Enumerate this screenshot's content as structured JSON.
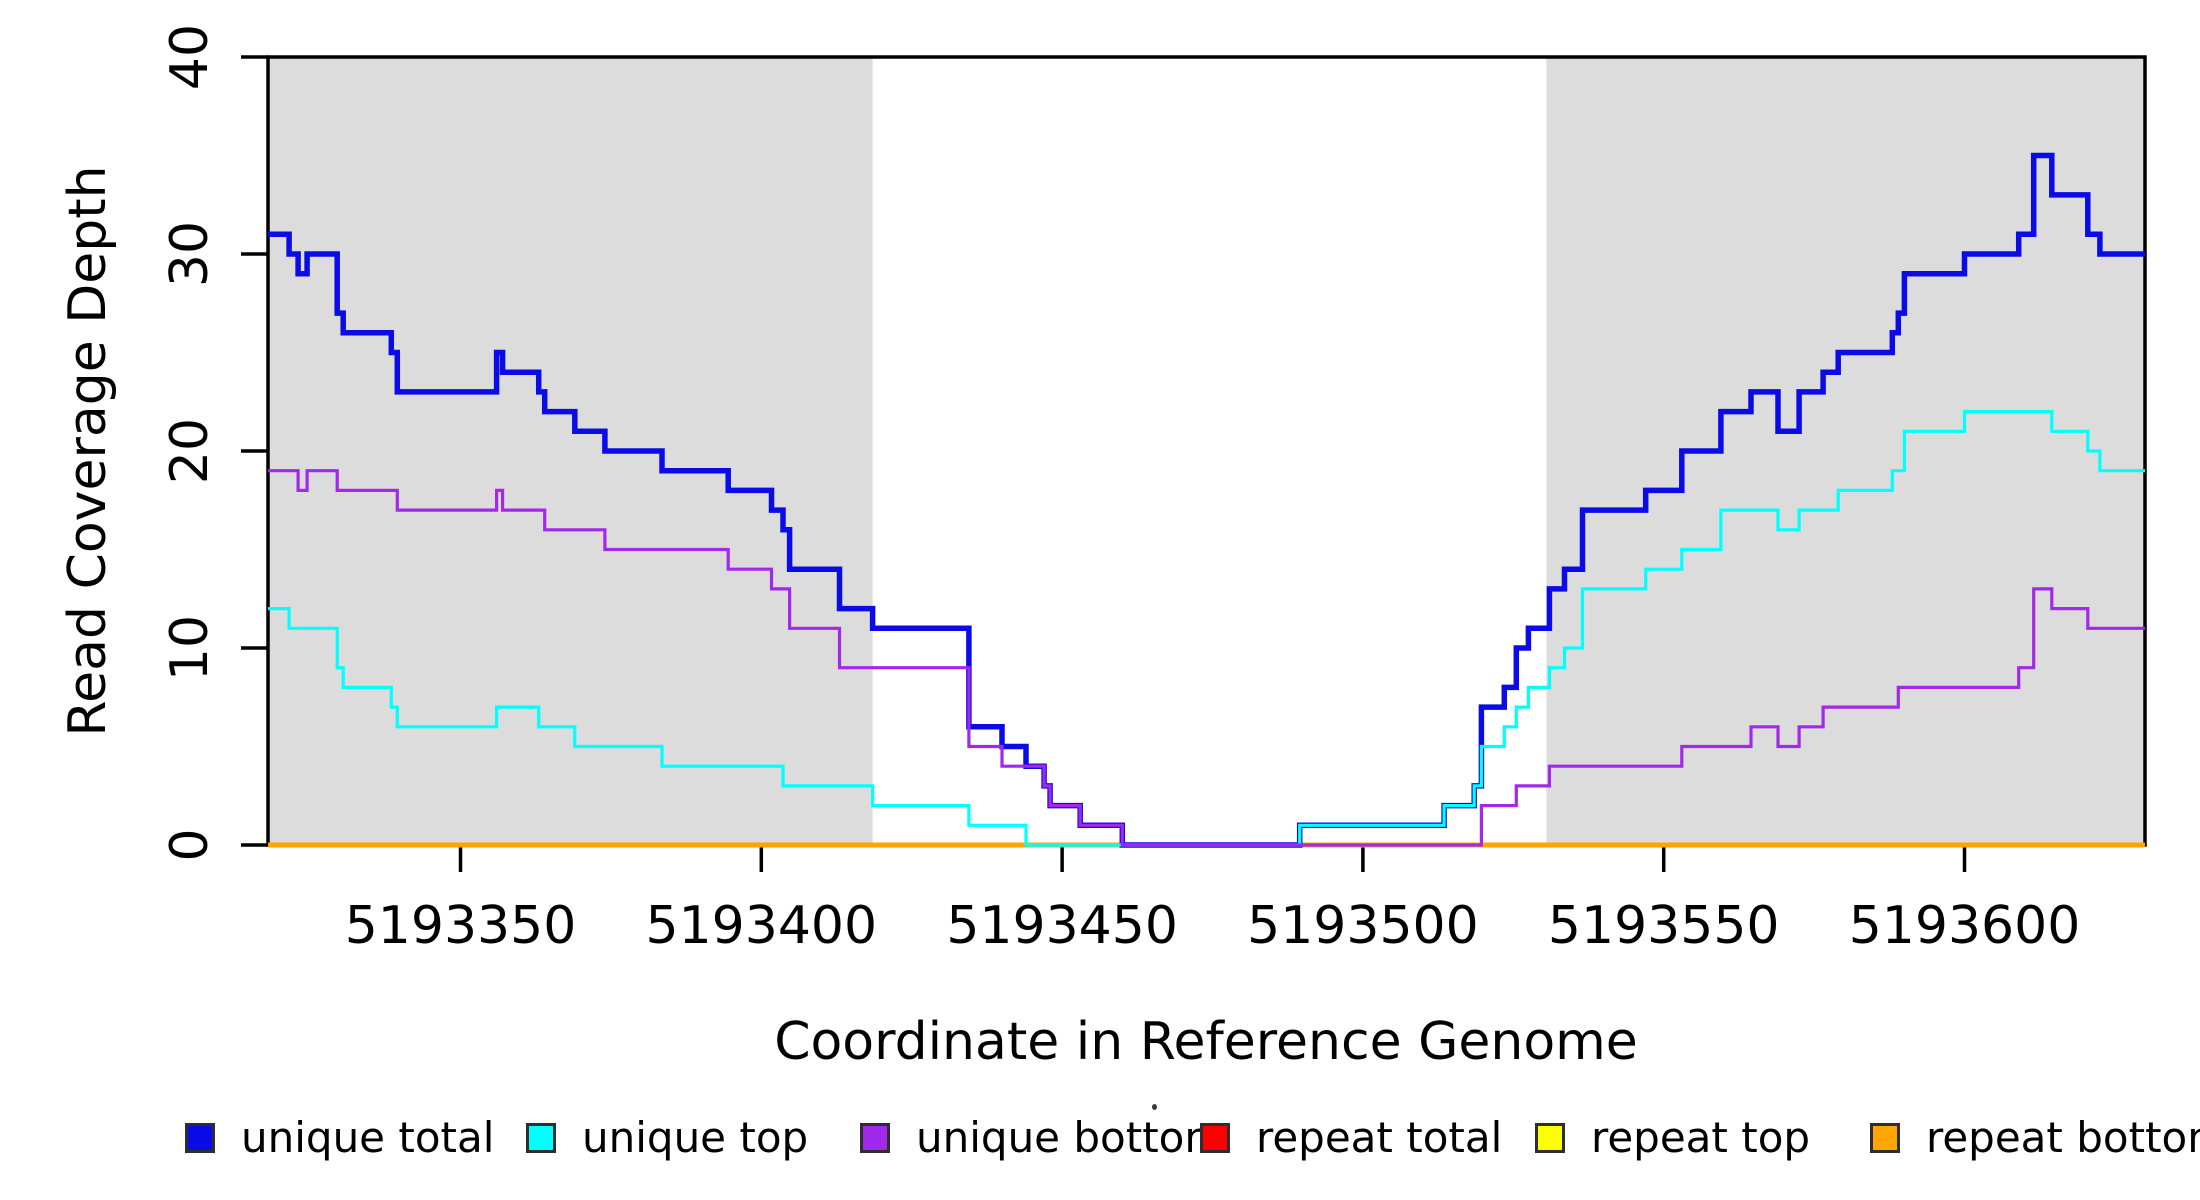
{
  "figure": {
    "background": "#FFFFFF",
    "axis_color": "#000000",
    "shaded_band_color": "#DCDCDC"
  },
  "chart_data": {
    "type": "line",
    "subtype": "step-coverage-plot",
    "title": "",
    "xlabel": "Coordinate in Reference Genome",
    "ylabel": "Read Coverage Depth",
    "xlim": [
      5193318,
      5193630
    ],
    "ylim": [
      0,
      40
    ],
    "xticks": [
      5193350,
      5193400,
      5193450,
      5193500,
      5193550,
      5193600
    ],
    "yticks": [
      0,
      10,
      20,
      30,
      40
    ],
    "grid": false,
    "legend_position": "bottom",
    "shaded_regions": [
      {
        "name": "left-gray-band",
        "x0": 5193318,
        "x1": 5193418.5
      },
      {
        "name": "right-gray-band",
        "x0": 5193530.5,
        "x1": 5193630
      }
    ],
    "draw_order": [
      "repeat total",
      "repeat top",
      "repeat bottom",
      "unique total",
      "unique top",
      "unique bottom"
    ],
    "series": [
      {
        "name": "unique total",
        "color": "#0B0BE8",
        "line_width": 5.5,
        "steps": [
          [
            5193318,
            31
          ],
          [
            5193321.5,
            30
          ],
          [
            5193323,
            29
          ],
          [
            5193324.5,
            30
          ],
          [
            5193329.5,
            27
          ],
          [
            5193330.5,
            26
          ],
          [
            5193338.5,
            25
          ],
          [
            5193339.5,
            23
          ],
          [
            5193356,
            25
          ],
          [
            5193357,
            24
          ],
          [
            5193363,
            23
          ],
          [
            5193364,
            22
          ],
          [
            5193369,
            21
          ],
          [
            5193374,
            20
          ],
          [
            5193383.5,
            19
          ],
          [
            5193394.5,
            18
          ],
          [
            5193401.7,
            17
          ],
          [
            5193403.6,
            16
          ],
          [
            5193404.7,
            14
          ],
          [
            5193413,
            12
          ],
          [
            5193418.5,
            11
          ],
          [
            5193434.5,
            6
          ],
          [
            5193440,
            5
          ],
          [
            5193444,
            4
          ],
          [
            5193447,
            3
          ],
          [
            5193448,
            2
          ],
          [
            5193453,
            1
          ],
          [
            5193460,
            0
          ],
          [
            5193489.5,
            1
          ],
          [
            5193513.5,
            2
          ],
          [
            5193518.5,
            3
          ],
          [
            5193519.7,
            7
          ],
          [
            5193523.5,
            8
          ],
          [
            5193525.5,
            10
          ],
          [
            5193527.5,
            11
          ],
          [
            5193531,
            13
          ],
          [
            5193533.5,
            14
          ],
          [
            5193536.5,
            17
          ],
          [
            5193547,
            18
          ],
          [
            5193553,
            20
          ],
          [
            5193559.5,
            22
          ],
          [
            5193564.5,
            23
          ],
          [
            5193569,
            21
          ],
          [
            5193572.5,
            23
          ],
          [
            5193576.5,
            24
          ],
          [
            5193579,
            25
          ],
          [
            5193588,
            26
          ],
          [
            5193589,
            27
          ],
          [
            5193590,
            29
          ],
          [
            5193600,
            30
          ],
          [
            5193609,
            31
          ],
          [
            5193611.5,
            35
          ],
          [
            5193614.5,
            33
          ],
          [
            5193620.5,
            31
          ],
          [
            5193622.5,
            30
          ]
        ]
      },
      {
        "name": "unique top",
        "color": "#00FFFF",
        "line_width": 3.2,
        "steps": [
          [
            5193318,
            12
          ],
          [
            5193321.5,
            11
          ],
          [
            5193329.5,
            9
          ],
          [
            5193330.5,
            8
          ],
          [
            5193338.5,
            7
          ],
          [
            5193339.5,
            6
          ],
          [
            5193356,
            7
          ],
          [
            5193363,
            6
          ],
          [
            5193369,
            5
          ],
          [
            5193383.5,
            4
          ],
          [
            5193403.6,
            3
          ],
          [
            5193418.5,
            2
          ],
          [
            5193434.5,
            1
          ],
          [
            5193444,
            0
          ],
          [
            5193489.5,
            1
          ],
          [
            5193513.5,
            2
          ],
          [
            5193518.5,
            3
          ],
          [
            5193519.7,
            5
          ],
          [
            5193523.5,
            6
          ],
          [
            5193525.5,
            7
          ],
          [
            5193527.5,
            8
          ],
          [
            5193531,
            9
          ],
          [
            5193533.5,
            10
          ],
          [
            5193536.5,
            13
          ],
          [
            5193547,
            14
          ],
          [
            5193553,
            15
          ],
          [
            5193559.5,
            17
          ],
          [
            5193569,
            16
          ],
          [
            5193572.5,
            17
          ],
          [
            5193579,
            18
          ],
          [
            5193588,
            19
          ],
          [
            5193590,
            21
          ],
          [
            5193600,
            22
          ],
          [
            5193614.5,
            21
          ],
          [
            5193620.5,
            20
          ],
          [
            5193622.5,
            19
          ]
        ]
      },
      {
        "name": "unique bottom",
        "color": "#A228EC",
        "line_width": 3.2,
        "steps": [
          [
            5193318,
            19
          ],
          [
            5193323,
            18
          ],
          [
            5193324.5,
            19
          ],
          [
            5193329.5,
            18
          ],
          [
            5193339.5,
            17
          ],
          [
            5193356,
            18
          ],
          [
            5193357,
            17
          ],
          [
            5193364,
            16
          ],
          [
            5193374,
            15
          ],
          [
            5193394.5,
            14
          ],
          [
            5193401.7,
            13
          ],
          [
            5193404.7,
            11
          ],
          [
            5193413,
            9
          ],
          [
            5193434.5,
            5
          ],
          [
            5193440,
            4
          ],
          [
            5193447,
            3
          ],
          [
            5193448,
            2
          ],
          [
            5193453,
            1
          ],
          [
            5193460,
            0
          ],
          [
            5193519.7,
            2
          ],
          [
            5193525.5,
            3
          ],
          [
            5193531,
            4
          ],
          [
            5193553,
            5
          ],
          [
            5193564.5,
            6
          ],
          [
            5193569,
            5
          ],
          [
            5193572.5,
            6
          ],
          [
            5193576.5,
            7
          ],
          [
            5193589,
            8
          ],
          [
            5193609,
            9
          ],
          [
            5193611.5,
            13
          ],
          [
            5193614.5,
            12
          ],
          [
            5193620.5,
            11
          ]
        ]
      },
      {
        "name": "repeat total",
        "color": "#FF0000",
        "line_width": 3.2,
        "steps": [
          [
            5193318,
            0
          ]
        ]
      },
      {
        "name": "repeat top",
        "color": "#FFFF00",
        "line_width": 3.2,
        "steps": [
          [
            5193318,
            0
          ]
        ]
      },
      {
        "name": "repeat bottom",
        "color": "#FFA500",
        "line_width": 5,
        "steps": [
          [
            5193318,
            0
          ]
        ]
      }
    ],
    "legend": {
      "items": [
        {
          "label": "unique total",
          "color": "#0B0BE8"
        },
        {
          "label": "unique top",
          "color": "#00FFFF"
        },
        {
          "label": "unique bottom",
          "color": "#A228EC"
        },
        {
          "label": "repeat total",
          "color": "#FF0000"
        },
        {
          "label": "repeat top",
          "color": "#FFFF00"
        },
        {
          "label": "repeat bottom",
          "color": "#FFA500"
        }
      ]
    }
  }
}
